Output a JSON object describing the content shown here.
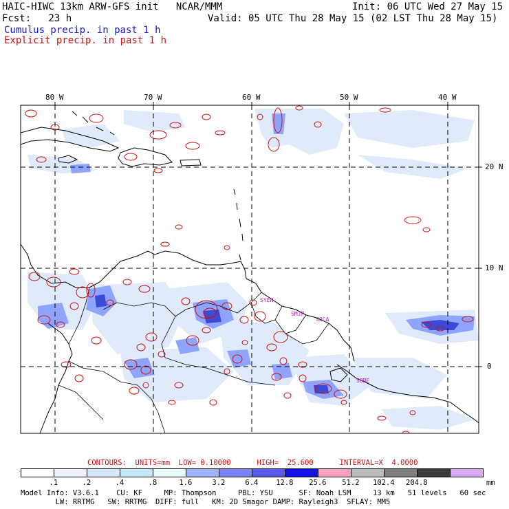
{
  "header": {
    "model_title": "HAIC-HIWC 13km ARW-GFS init   NCAR/MMM",
    "init": "Init: 06 UTC Wed 27 May 15",
    "fcst": "Fcst:   23 h",
    "valid": "Valid: 05 UTC Thu 28 May 15 (02 LST Thu 28 May 15)",
    "cumulus_label": "Cumulus precip. in past 1 h",
    "explicit_label": "Explicit precip. in past 1 h",
    "cumulus_color": "#1515c8",
    "explicit_color": "#d01010"
  },
  "map": {
    "lon_labels": [
      "80 W",
      "70 W",
      "60 W",
      "50 W",
      "40 W"
    ],
    "lat_labels": [
      "20 N",
      "10 N",
      "0"
    ],
    "station_labels": [
      "SYEN",
      "SMJP",
      "SOCA",
      "SBBE"
    ],
    "station_color": "#b020b0"
  },
  "contours": {
    "label": "CONTOURS:  UNITS=mm  LOW= 0.10000      HIGH=  25.600      INTERVAL=X  4.0000"
  },
  "colorbar": {
    "unit": "mm",
    "ticks": [
      ".1",
      ".2",
      ".4",
      ".8",
      "1.6",
      "3.2",
      "6.4",
      "12.8",
      "25.6",
      "51.2",
      "102.4",
      "204.8"
    ],
    "colors": [
      "#ffffff",
      "#eef3fd",
      "#d6e6fb",
      "#c2e9f5",
      "#e7fbff",
      "#9fb4ff",
      "#7b82ff",
      "#5a5aee",
      "#1212e8",
      "#ff9fc2",
      "#bbbbbb",
      "#808080",
      "#3a3a3a",
      "#d8a8f5"
    ]
  },
  "model_info": {
    "line1": "Model Info: V3.6.1    CU: KF     MP: Thompson     PBL: YSU      SF: Noah LSM     13 km   51 levels   60 sec",
    "line2": "        LW: RRTMG   SW: RRTMG  DIFF: full   KM: 2D Smagor DAMP: Rayleigh3  SFLAY: MM5"
  }
}
